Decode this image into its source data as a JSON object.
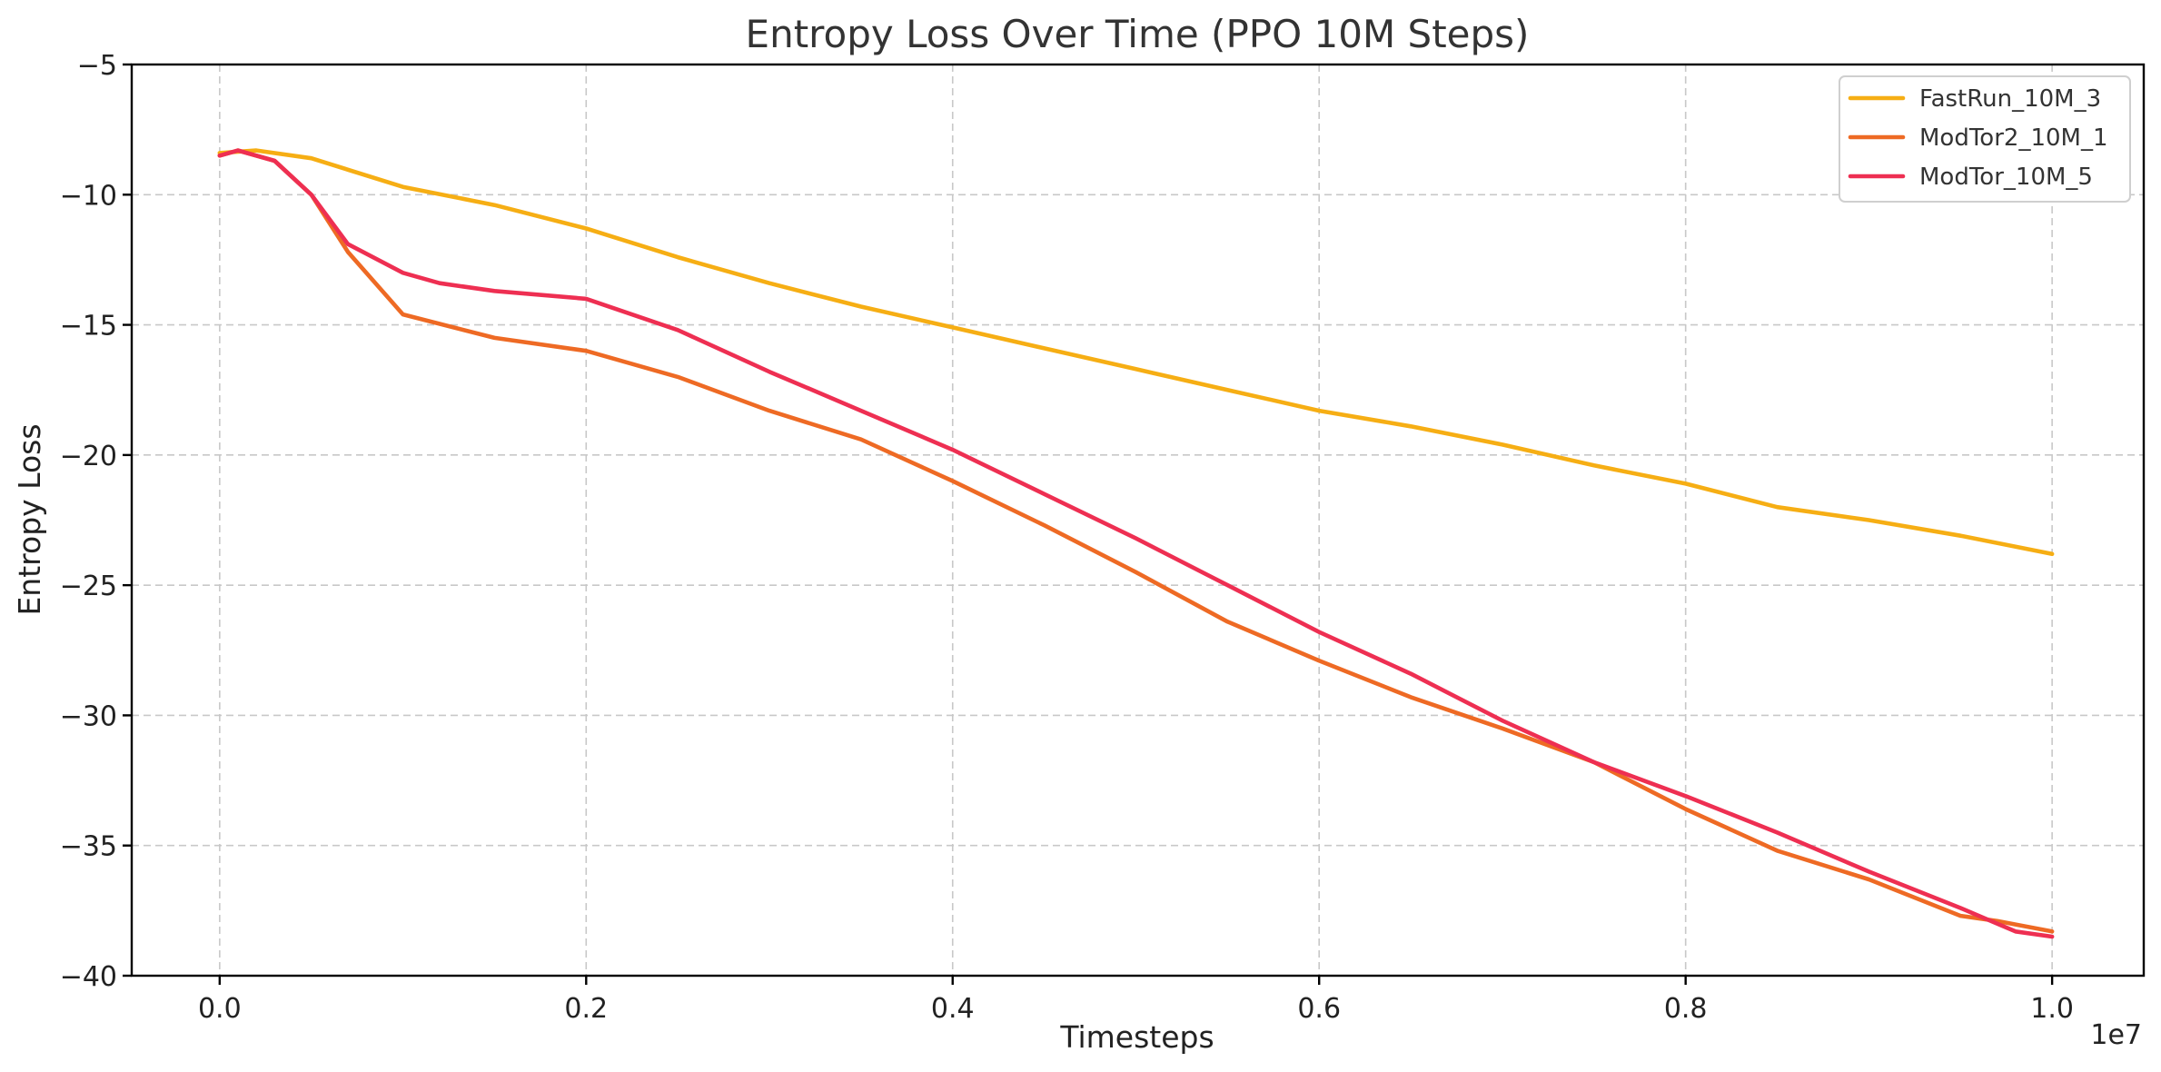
{
  "chart_data": {
    "type": "line",
    "title": "Entropy Loss Over Time (PPO 10M Steps)",
    "xlabel": "Timesteps",
    "ylabel": "Entropy Loss",
    "x_offset_label": "1e7",
    "xlim": [
      -0.048,
      1.05
    ],
    "ylim": [
      -40,
      -5
    ],
    "x_ticks": [
      0.0,
      0.2,
      0.4,
      0.6,
      0.8,
      1.0
    ],
    "x_tick_labels": [
      "0.0",
      "0.2",
      "0.4",
      "0.6",
      "0.8",
      "1.0"
    ],
    "y_ticks": [
      -5,
      -10,
      -15,
      -20,
      -25,
      -30,
      -35,
      -40
    ],
    "y_tick_labels": [
      "−5",
      "−10",
      "−15",
      "−20",
      "−25",
      "−30",
      "−35",
      "−40"
    ],
    "grid": true,
    "legend_position": "top-right",
    "series": [
      {
        "name": "FastRun_10M_3",
        "color": "#F6AE14",
        "x": [
          0.0,
          0.02,
          0.05,
          0.1,
          0.15,
          0.2,
          0.25,
          0.3,
          0.35,
          0.4,
          0.45,
          0.5,
          0.55,
          0.6,
          0.65,
          0.7,
          0.75,
          0.8,
          0.85,
          0.9,
          0.95,
          1.0
        ],
        "y": [
          -8.4,
          -8.3,
          -8.6,
          -9.7,
          -10.4,
          -11.3,
          -12.4,
          -13.4,
          -14.3,
          -15.1,
          -15.9,
          -16.7,
          -17.5,
          -18.3,
          -18.9,
          -19.6,
          -20.4,
          -21.1,
          -22.0,
          -22.5,
          -23.1,
          -23.8
        ]
      },
      {
        "name": "ModTor2_10M_1",
        "color": "#EE6A24",
        "x": [
          0.0,
          0.01,
          0.03,
          0.05,
          0.07,
          0.1,
          0.15,
          0.2,
          0.25,
          0.3,
          0.35,
          0.4,
          0.45,
          0.5,
          0.55,
          0.6,
          0.65,
          0.7,
          0.75,
          0.8,
          0.85,
          0.9,
          0.95,
          0.97,
          1.0
        ],
        "y": [
          -8.5,
          -8.3,
          -8.7,
          -10.0,
          -12.2,
          -14.6,
          -15.5,
          -16.0,
          -17.0,
          -18.3,
          -19.4,
          -21.0,
          -22.7,
          -24.5,
          -26.4,
          -27.9,
          -29.3,
          -30.5,
          -31.8,
          -33.6,
          -35.2,
          -36.3,
          -37.7,
          -37.9,
          -38.3
        ]
      },
      {
        "name": "ModTor_10M_5",
        "color": "#EE2F52",
        "x": [
          0.0,
          0.01,
          0.03,
          0.05,
          0.07,
          0.1,
          0.12,
          0.15,
          0.2,
          0.25,
          0.3,
          0.35,
          0.4,
          0.45,
          0.5,
          0.55,
          0.6,
          0.65,
          0.7,
          0.75,
          0.8,
          0.85,
          0.9,
          0.95,
          0.98,
          1.0
        ],
        "y": [
          -8.5,
          -8.3,
          -8.7,
          -10.0,
          -11.9,
          -13.0,
          -13.4,
          -13.7,
          -14.0,
          -15.2,
          -16.8,
          -18.3,
          -19.8,
          -21.5,
          -23.2,
          -25.0,
          -26.8,
          -28.4,
          -30.2,
          -31.8,
          -33.1,
          -34.5,
          -36.0,
          -37.4,
          -38.3,
          -38.5
        ]
      }
    ]
  }
}
